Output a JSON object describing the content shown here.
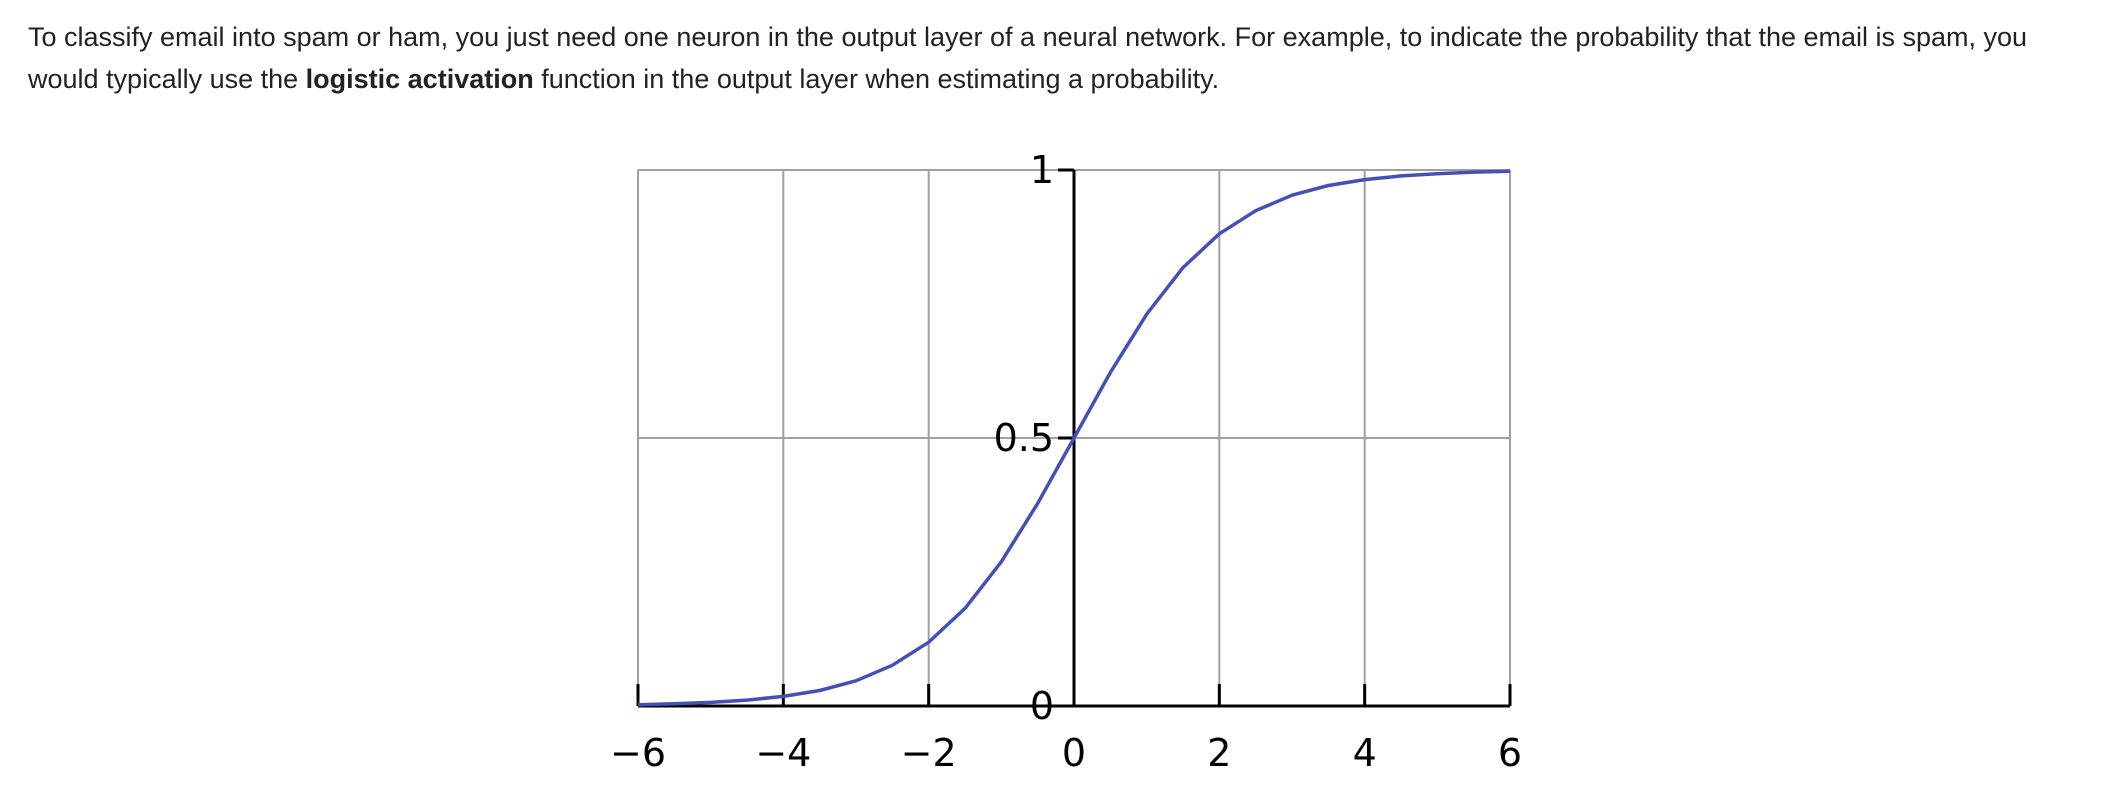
{
  "text": {
    "line1": "To classify email into spam or ham, you just need one neuron in the output layer of a neural network. For example, to indicate the probability that the email is spam, you",
    "line2_pre": "would typically use the ",
    "line2_bold": "logistic activation",
    "line2_post": " function in the output layer when estimating a probability."
  },
  "chart_data": {
    "type": "line",
    "title": "",
    "xlabel": "",
    "ylabel": "",
    "function": "logistic sigmoid 1/(1+e^-x)",
    "xlim": [
      -6,
      6
    ],
    "ylim": [
      0,
      1
    ],
    "xticks": [
      -6,
      -4,
      -2,
      0,
      2,
      4,
      6
    ],
    "xtick_labels": [
      "−6",
      "−4",
      "−2",
      "0",
      "2",
      "4",
      "6"
    ],
    "yticks": [
      0,
      0.5,
      1
    ],
    "ytick_labels": [
      "0",
      "0.5",
      "1"
    ],
    "grid": true,
    "series": [
      {
        "color": "#4450b8",
        "x": [
          -6,
          -5.5,
          -5,
          -4.5,
          -4,
          -3.5,
          -3,
          -2.5,
          -2,
          -1.5,
          -1,
          -0.5,
          0,
          0.5,
          1,
          1.5,
          2,
          2.5,
          3,
          3.5,
          4,
          4.5,
          5,
          5.5,
          6
        ],
        "y": [
          0.0025,
          0.0041,
          0.0067,
          0.011,
          0.018,
          0.029,
          0.047,
          0.076,
          0.119,
          0.182,
          0.269,
          0.378,
          0.5,
          0.622,
          0.731,
          0.818,
          0.881,
          0.924,
          0.953,
          0.971,
          0.982,
          0.989,
          0.993,
          0.996,
          0.9975
        ]
      }
    ],
    "colors": {
      "grid": "#a0a0a0",
      "axis": "#000000",
      "curve": "#4450b8"
    }
  }
}
